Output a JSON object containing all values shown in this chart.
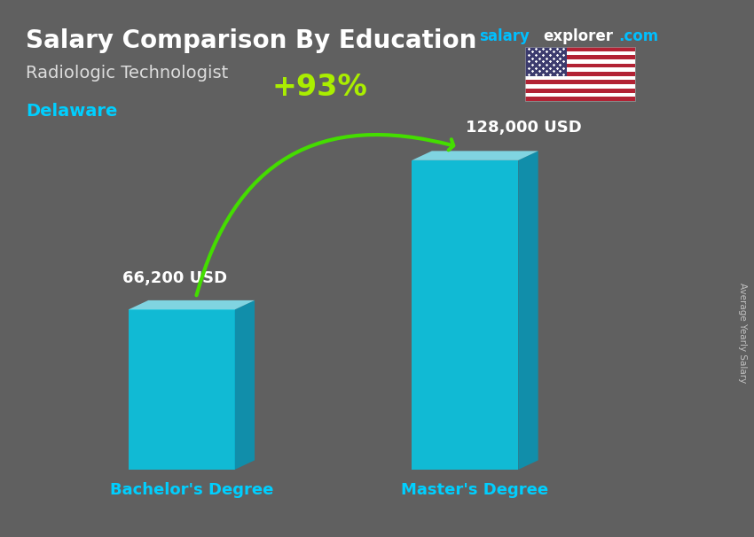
{
  "title": "Salary Comparison By Education",
  "subtitle": "Radiologic Technologist",
  "location": "Delaware",
  "categories": [
    "Bachelor's Degree",
    "Master's Degree"
  ],
  "values": [
    66200,
    128000
  ],
  "value_labels": [
    "66,200 USD",
    "128,000 USD"
  ],
  "pct_change": "+93%",
  "bar_face_color": "#00CFEE",
  "bar_side_color": "#0099BB",
  "bar_top_color": "#88EEFF",
  "background_color": "#606060",
  "title_color": "#FFFFFF",
  "subtitle_color": "#DDDDDD",
  "location_color": "#00CFFF",
  "category_label_color": "#00CFFF",
  "value_label_color": "#FFFFFF",
  "pct_color": "#AAEE00",
  "arrow_color": "#44DD00",
  "side_label_color": "#CCCCCC",
  "side_label_text": "Average Yearly Salary",
  "website_color_salary": "#00BFFF",
  "website_color_explorer": "#FFFFFF",
  "website_color_com": "#00BFFF",
  "figsize": [
    8.5,
    6.06
  ],
  "dpi": 100
}
